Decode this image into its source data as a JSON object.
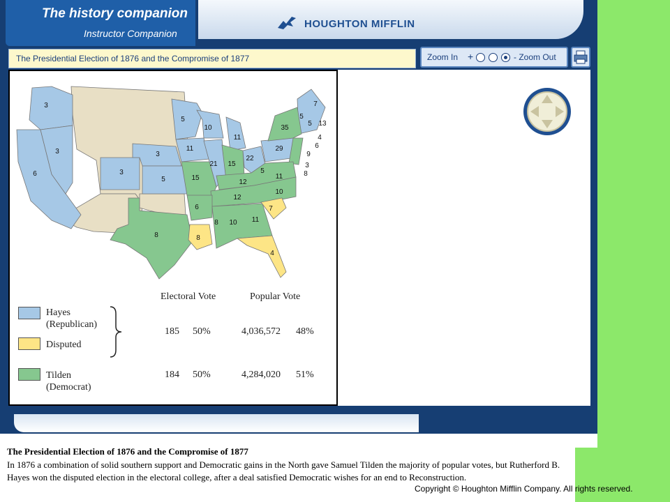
{
  "header": {
    "logo": "The history companion",
    "subtitle": "Instructor Companion",
    "publisher": "HOUGHTON MIFFLIN"
  },
  "title_bar": {
    "title": "The Presidential Election of 1876 and the Compromise of 1877"
  },
  "zoom": {
    "in_label": "Zoom In",
    "plus": "+",
    "out_label": "- Zoom Out",
    "selected_level": 3
  },
  "icons": {
    "print": "printer-icon",
    "nav": "navigation-pad-icon",
    "logo": "houghton-mifflin-bird-icon"
  },
  "colors": {
    "hayes": "#a6c8e6",
    "disputed": "#fde586",
    "tilden": "#86c78f",
    "other": "#e8dfc5",
    "frame": "#163e73"
  },
  "map": {
    "state_votes": [
      {
        "state": "OR",
        "votes": "3",
        "party": "hayes"
      },
      {
        "state": "CA",
        "votes": "6",
        "party": "hayes"
      },
      {
        "state": "NV",
        "votes": "3",
        "party": "hayes"
      },
      {
        "state": "CO",
        "votes": "3",
        "party": "hayes"
      },
      {
        "state": "NE",
        "votes": "3",
        "party": "hayes"
      },
      {
        "state": "KS",
        "votes": "5",
        "party": "hayes"
      },
      {
        "state": "MN",
        "votes": "5",
        "party": "hayes"
      },
      {
        "state": "IA",
        "votes": "11",
        "party": "hayes"
      },
      {
        "state": "WI",
        "votes": "10",
        "party": "hayes"
      },
      {
        "state": "IL",
        "votes": "21",
        "party": "hayes"
      },
      {
        "state": "MI",
        "votes": "11",
        "party": "hayes"
      },
      {
        "state": "OH",
        "votes": "22",
        "party": "hayes"
      },
      {
        "state": "PA",
        "votes": "29",
        "party": "hayes"
      },
      {
        "state": "VT",
        "votes": "5",
        "party": "hayes"
      },
      {
        "state": "NH",
        "votes": "5",
        "party": "hayes"
      },
      {
        "state": "ME",
        "votes": "7",
        "party": "hayes"
      },
      {
        "state": "MA",
        "votes": "13",
        "party": "hayes"
      },
      {
        "state": "RI",
        "votes": "4",
        "party": "hayes"
      },
      {
        "state": "NY",
        "votes": "35",
        "party": "tilden"
      },
      {
        "state": "CT",
        "votes": "6",
        "party": "tilden"
      },
      {
        "state": "NJ",
        "votes": "9",
        "party": "tilden"
      },
      {
        "state": "DE",
        "votes": "3",
        "party": "tilden"
      },
      {
        "state": "MD",
        "votes": "8",
        "party": "tilden"
      },
      {
        "state": "IN",
        "votes": "15",
        "party": "tilden"
      },
      {
        "state": "MO",
        "votes": "15",
        "party": "tilden"
      },
      {
        "state": "KY",
        "votes": "12",
        "party": "tilden"
      },
      {
        "state": "WV",
        "votes": "5",
        "party": "tilden"
      },
      {
        "state": "VA",
        "votes": "11",
        "party": "tilden"
      },
      {
        "state": "NC",
        "votes": "10",
        "party": "tilden"
      },
      {
        "state": "TN",
        "votes": "12",
        "party": "tilden"
      },
      {
        "state": "AR",
        "votes": "6",
        "party": "tilden"
      },
      {
        "state": "MS",
        "votes": "8",
        "party": "tilden"
      },
      {
        "state": "AL",
        "votes": "10",
        "party": "tilden"
      },
      {
        "state": "GA",
        "votes": "11",
        "party": "tilden"
      },
      {
        "state": "TX",
        "votes": "8",
        "party": "tilden"
      },
      {
        "state": "SC",
        "votes": "7",
        "party": "disputed"
      },
      {
        "state": "LA",
        "votes": "8",
        "party": "disputed"
      },
      {
        "state": "FL",
        "votes": "4",
        "party": "disputed"
      }
    ]
  },
  "legend": {
    "hayes": "Hayes (Republican)",
    "disputed": "Disputed",
    "tilden": "Tilden (Democrat)"
  },
  "results": {
    "electoral_header": "Electoral Vote",
    "popular_header": "Popular Vote",
    "hayes": {
      "electoral": "185",
      "electoral_pct": "50%",
      "popular": "4,036,572",
      "popular_pct": "48%"
    },
    "tilden": {
      "electoral": "184",
      "electoral_pct": "50%",
      "popular": "4,284,020",
      "popular_pct": "51%"
    }
  },
  "caption": {
    "title": "The Presidential Election of 1876 and the Compromise of 1877",
    "body": "In 1876 a combination of solid southern support and Democratic gains in the North gave Samuel Tilden the majority of popular votes, but Rutherford B. Hayes won the disputed election in the electoral college, after a deal satisfied Democratic wishes for an end to Reconstruction."
  },
  "copyright": "Copyright © Houghton Mifflin Company. All rights reserved."
}
